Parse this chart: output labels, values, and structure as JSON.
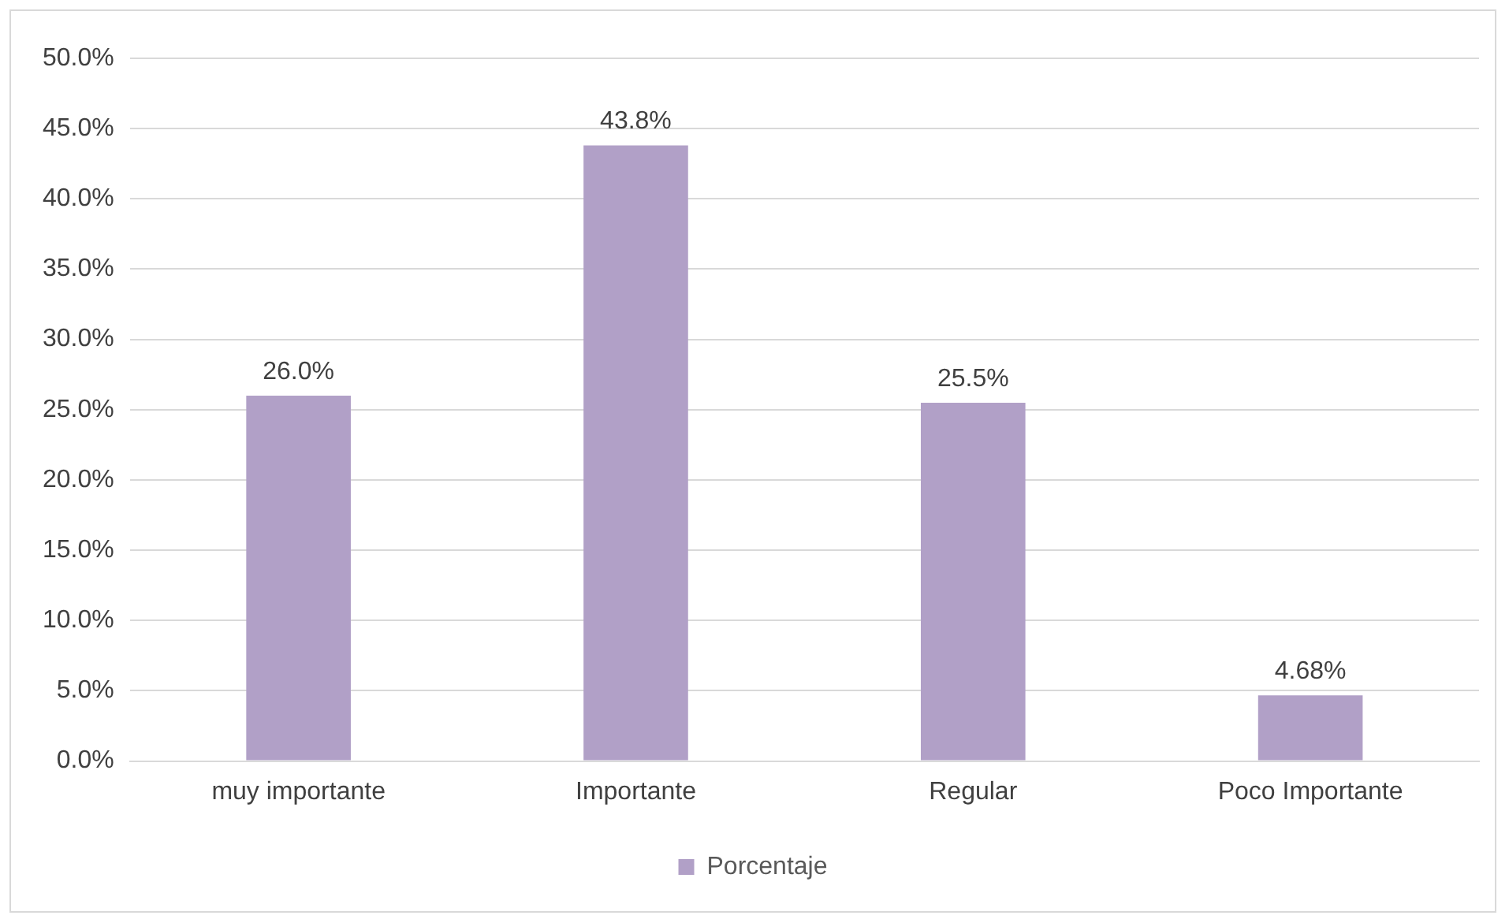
{
  "chart_data": {
    "type": "bar",
    "categories": [
      "muy importante",
      "Importante",
      "Regular",
      "Poco Importante"
    ],
    "series": [
      {
        "name": "Porcentaje",
        "color": "#b1a0c7",
        "values": [
          26.0,
          43.8,
          25.5,
          4.68
        ],
        "value_labels": [
          "26.0%",
          "43.8%",
          "25.5%",
          "4.68%"
        ]
      }
    ],
    "ylim": [
      0,
      50
    ],
    "yticks": [
      {
        "value": 0,
        "label": "0.0%"
      },
      {
        "value": 5,
        "label": "5.0%"
      },
      {
        "value": 10,
        "label": "10.0%"
      },
      {
        "value": 15,
        "label": "15.0%"
      },
      {
        "value": 20,
        "label": "20.0%"
      },
      {
        "value": 25,
        "label": "25.0%"
      },
      {
        "value": 30,
        "label": "30.0%"
      },
      {
        "value": 35,
        "label": "35.0%"
      },
      {
        "value": 40,
        "label": "40.0%"
      },
      {
        "value": 45,
        "label": "45.0%"
      },
      {
        "value": 50,
        "label": "50.0%"
      }
    ],
    "grid": "y",
    "legend": "bottom"
  }
}
